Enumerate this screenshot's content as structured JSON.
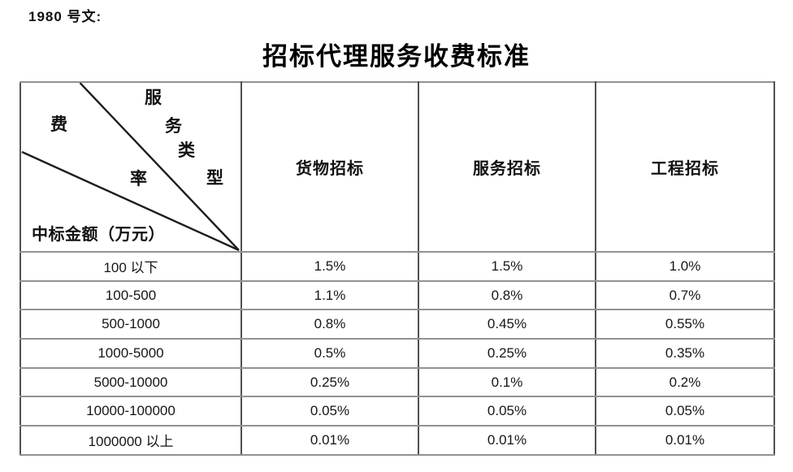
{
  "document": {
    "ref_label": "1980 号文:",
    "title": "招标代理服务收费标准"
  },
  "fee_table": {
    "corner": {
      "col_axis_chars": [
        "服",
        "务",
        "类",
        "型"
      ],
      "row_axis_chars": [
        "费",
        "率"
      ],
      "row_axis_label": "中标金额（万元）"
    },
    "column_headers": [
      "货物招标",
      "服务招标",
      "工程招标"
    ],
    "rows": [
      {
        "amount_range": "100 以下",
        "rates": [
          "1.5%",
          "1.5%",
          "1.0%"
        ]
      },
      {
        "amount_range": "100-500",
        "rates": [
          "1.1%",
          "0.8%",
          "0.7%"
        ]
      },
      {
        "amount_range": "500-1000",
        "rates": [
          "0.8%",
          "0.45%",
          "0.55%"
        ]
      },
      {
        "amount_range": "1000-5000",
        "rates": [
          "0.5%",
          "0.25%",
          "0.35%"
        ]
      },
      {
        "amount_range": "5000-10000",
        "rates": [
          "0.25%",
          "0.1%",
          "0.2%"
        ]
      },
      {
        "amount_range": "10000-100000",
        "rates": [
          "0.05%",
          "0.05%",
          "0.05%"
        ]
      },
      {
        "amount_range": "1000000 以上",
        "rates": [
          "0.01%",
          "0.01%",
          "0.01%"
        ]
      }
    ]
  }
}
